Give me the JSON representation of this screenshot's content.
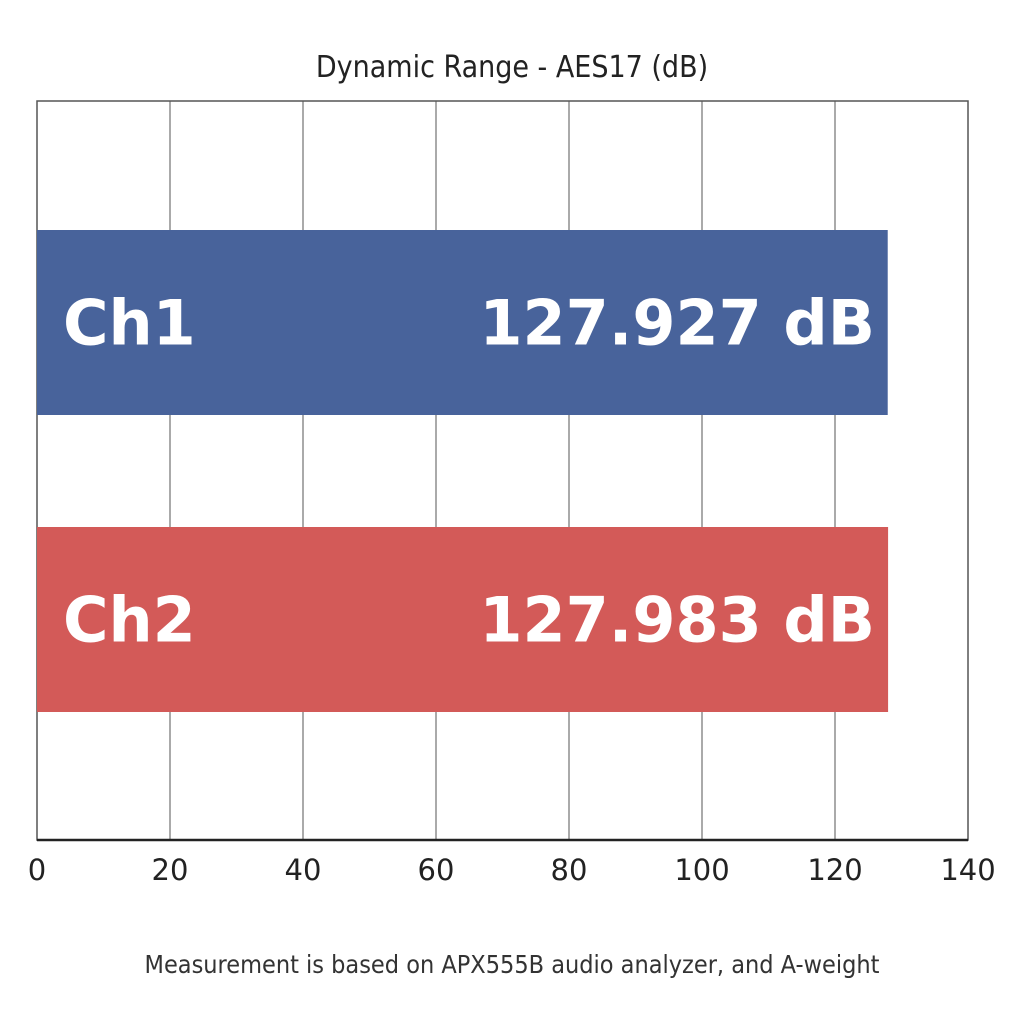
{
  "chart_data": {
    "type": "bar",
    "orientation": "horizontal",
    "title": "Dynamic Range - AES17 (dB)",
    "categories": [
      "Ch1",
      "Ch2"
    ],
    "values": [
      127.927,
      127.983
    ],
    "value_labels": [
      "127.927 dB",
      "127.983 dB"
    ],
    "colors": [
      "#48639b",
      "#d35a58"
    ],
    "xlim": [
      0,
      140
    ],
    "xticks": [
      "0",
      "20",
      "40",
      "60",
      "80",
      "100",
      "120",
      "140"
    ],
    "xlabel": "",
    "ylabel": "",
    "grid": "vertical",
    "footnote": "Measurement is based on APX555B audio analyzer, and A-weight"
  }
}
